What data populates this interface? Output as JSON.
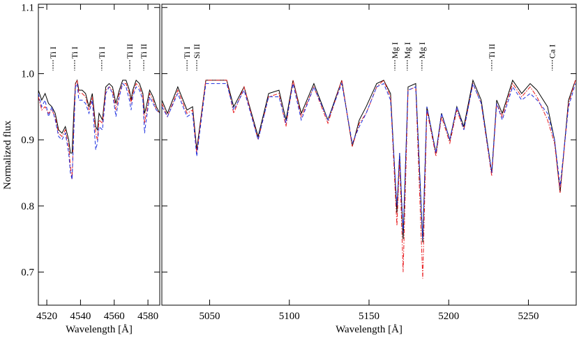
{
  "chart_data": [
    {
      "type": "line",
      "xlabel": "Wavelength [Å]",
      "ylabel": "Normalized flux",
      "xlim": [
        4515,
        4587
      ],
      "ylim": [
        0.65,
        1.105
      ],
      "xticks": [
        4520,
        4540,
        4560,
        4580
      ],
      "yticks": [
        0.7,
        0.8,
        0.9,
        {
          "value": 1,
          "label": "1.0"
        },
        1.1
      ],
      "x": [
        4515,
        4517,
        4519,
        4521,
        4523,
        4525,
        4527,
        4529,
        4531,
        4533,
        4534,
        4535,
        4536,
        4537,
        4538,
        4539,
        4541,
        4543,
        4545,
        4547,
        4549,
        4550,
        4551,
        4553,
        4555,
        4557,
        4559,
        4561,
        4563,
        4565,
        4567,
        4569,
        4570,
        4571,
        4573,
        4575,
        4577,
        4578,
        4579,
        4581,
        4583,
        4585,
        4587
      ],
      "series": [
        {
          "color": "#000000",
          "dash": "solid",
          "values": [
            0.975,
            0.96,
            0.97,
            0.955,
            0.95,
            0.94,
            0.915,
            0.91,
            0.92,
            0.9,
            0.88,
            0.88,
            0.94,
            0.985,
            0.99,
            0.975,
            0.975,
            0.97,
            0.95,
            0.97,
            0.92,
            0.915,
            0.94,
            0.93,
            0.98,
            0.985,
            0.98,
            0.955,
            0.975,
            0.99,
            0.99,
            0.975,
            0.96,
            0.975,
            0.99,
            0.985,
            0.97,
            0.94,
            0.95,
            0.975,
            0.965,
            0.95,
            0.94
          ]
        },
        {
          "color": "#e8191c",
          "dash": "dashdot",
          "values": [
            0.965,
            0.945,
            0.95,
            0.94,
            0.945,
            0.935,
            0.91,
            0.905,
            0.915,
            0.89,
            0.86,
            0.84,
            0.92,
            0.985,
            0.99,
            0.97,
            0.97,
            0.965,
            0.945,
            0.965,
            0.91,
            0.9,
            0.93,
            0.925,
            0.975,
            0.98,
            0.975,
            0.945,
            0.97,
            0.985,
            0.985,
            0.97,
            0.955,
            0.97,
            0.985,
            0.98,
            0.965,
            0.925,
            0.94,
            0.97,
            0.96,
            0.945,
            0.94
          ]
        },
        {
          "color": "#1c2fe0",
          "dash": "dashed",
          "values": [
            0.97,
            0.95,
            0.96,
            0.935,
            0.95,
            0.93,
            0.905,
            0.9,
            0.91,
            0.88,
            0.85,
            0.84,
            0.91,
            0.98,
            0.985,
            0.96,
            0.96,
            0.955,
            0.94,
            0.96,
            0.885,
            0.895,
            0.92,
            0.915,
            0.97,
            0.98,
            0.97,
            0.935,
            0.965,
            0.985,
            0.98,
            0.96,
            0.945,
            0.965,
            0.98,
            0.975,
            0.96,
            0.91,
            0.93,
            0.965,
            0.955,
            0.945,
            0.94
          ]
        }
      ],
      "annotations": [
        {
          "text": "Ti I",
          "x": 4523.7
        },
        {
          "text": "Ti I",
          "x": 4536.5
        },
        {
          "text": "Ti I",
          "x": 4552.6
        },
        {
          "text": "Ti II",
          "x": 4569.2
        },
        {
          "text": "Ti II",
          "x": 4577.5
        }
      ]
    },
    {
      "type": "line",
      "xlabel": "Wavelength [Å]",
      "xlim": [
        5020,
        5280
      ],
      "ylim": [
        0.65,
        1.105
      ],
      "xticks": [
        5050,
        5100,
        5150,
        5200,
        5250
      ],
      "x": [
        5020,
        5023.5,
        5030,
        5035.8,
        5039.3,
        5041.9,
        5047.6,
        5054.1,
        5060.7,
        5065.1,
        5071.6,
        5080.4,
        5087,
        5093.5,
        5097.9,
        5102.3,
        5107.5,
        5115.4,
        5124.2,
        5132.9,
        5139.5,
        5143.9,
        5148.2,
        5154.8,
        5159.2,
        5163.5,
        5167.5,
        5169.2,
        5171.4,
        5174.5,
        5179.3,
        5183.7,
        5186.3,
        5192,
        5195.5,
        5200.7,
        5205.1,
        5209.5,
        5215.2,
        5220.4,
        5227,
        5230.1,
        5233.6,
        5240.1,
        5245.8,
        5251.1,
        5255.4,
        5262,
        5266.4,
        5269.9,
        5275.2,
        5279.5
      ],
      "series": [
        {
          "color": "#000000",
          "dash": "solid",
          "values": [
            0.96,
            0.94,
            0.98,
            0.945,
            0.95,
            0.885,
            0.99,
            0.99,
            0.99,
            0.95,
            0.98,
            0.905,
            0.97,
            0.975,
            0.93,
            0.99,
            0.94,
            0.985,
            0.93,
            0.99,
            0.89,
            0.93,
            0.95,
            0.985,
            0.99,
            0.97,
            0.79,
            0.88,
            0.75,
            0.98,
            0.985,
            0.745,
            0.95,
            0.88,
            0.94,
            0.9,
            0.95,
            0.92,
            0.99,
            0.96,
            0.85,
            0.96,
            0.94,
            0.99,
            0.97,
            0.985,
            0.975,
            0.95,
            0.9,
            0.82,
            0.96,
            0.99
          ]
        },
        {
          "color": "#e8191c",
          "dash": "dashdot",
          "values": [
            0.955,
            0.935,
            0.975,
            0.94,
            0.945,
            0.88,
            0.99,
            0.99,
            0.99,
            0.94,
            0.98,
            0.9,
            0.965,
            0.97,
            0.92,
            0.99,
            0.935,
            0.98,
            0.925,
            0.99,
            0.89,
            0.925,
            0.94,
            0.98,
            0.99,
            0.965,
            0.77,
            0.87,
            0.7,
            0.975,
            0.98,
            0.69,
            0.945,
            0.875,
            0.935,
            0.895,
            0.945,
            0.915,
            0.985,
            0.955,
            0.845,
            0.955,
            0.935,
            0.985,
            0.965,
            0.98,
            0.965,
            0.93,
            0.895,
            0.82,
            0.955,
            0.99
          ]
        },
        {
          "color": "#1c2fe0",
          "dash": "dashed",
          "values": [
            0.95,
            0.935,
            0.97,
            0.935,
            0.94,
            0.875,
            0.985,
            0.985,
            0.985,
            0.945,
            0.975,
            0.9,
            0.965,
            0.965,
            0.925,
            0.985,
            0.93,
            0.98,
            0.93,
            0.985,
            0.895,
            0.92,
            0.94,
            0.98,
            0.985,
            0.96,
            0.8,
            0.88,
            0.76,
            0.975,
            0.98,
            0.75,
            0.95,
            0.88,
            0.94,
            0.9,
            0.95,
            0.915,
            0.985,
            0.955,
            0.85,
            0.955,
            0.93,
            0.98,
            0.96,
            0.97,
            0.96,
            0.94,
            0.9,
            0.83,
            0.95,
            0.985
          ]
        }
      ],
      "annotations": [
        {
          "text": "Ti I",
          "x": 5035.8
        },
        {
          "text": "Si II",
          "x": 5041.9
        },
        {
          "text": "Mg I",
          "x": 5166.2
        },
        {
          "text": "Mg I",
          "x": 5174
        },
        {
          "text": "Mg I",
          "x": 5183.2
        },
        {
          "text": "Ti II",
          "x": 5227
        },
        {
          "text": "Ca I",
          "x": 5265
        }
      ]
    }
  ]
}
